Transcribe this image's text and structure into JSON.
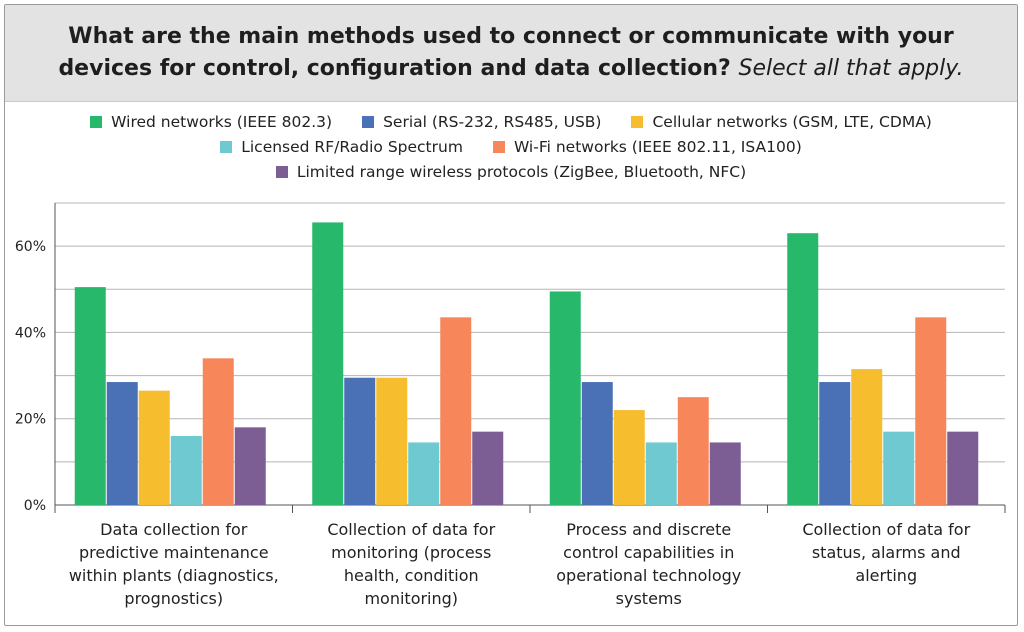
{
  "title": "What are the main methods used to connect or communicate with your devices for control, configuration and data collection?",
  "subtitle": "Select all that apply.",
  "colors": {
    "wired": "#27b86b",
    "serial": "#4a70b5",
    "cellular": "#f6bd2e",
    "rf": "#6ec9d1",
    "wifi": "#f7875a",
    "limited": "#7d5e94"
  },
  "chart_data": {
    "type": "bar",
    "categories": [
      "Data collection for predictive maintenance within plants (diagnostics, prognostics)",
      "Collection of data for monitoring (process health, condition monitoring)",
      "Process and discrete control capabilities in operational technology systems",
      "Collection of data for status, alarms and alerting"
    ],
    "category_lines": [
      [
        "Data collection for",
        "predictive maintenance",
        "within plants (diagnostics,",
        "prognostics)"
      ],
      [
        "Collection of data for",
        "monitoring (process",
        "health, condition",
        "monitoring)"
      ],
      [
        "Process and discrete",
        "control capabilities in",
        "operational technology",
        "systems"
      ],
      [
        "Collection of data for",
        "status, alarms and",
        "alerting"
      ]
    ],
    "series": [
      {
        "name": "Wired networks (IEEE 802.3)",
        "key": "wired",
        "values": [
          50.5,
          65.5,
          49.5,
          63
        ]
      },
      {
        "name": "Serial (RS-232, RS485, USB)",
        "key": "serial",
        "values": [
          28.5,
          29.5,
          28.5,
          28.5
        ]
      },
      {
        "name": "Cellular networks (GSM, LTE, CDMA)",
        "key": "cellular",
        "values": [
          26.5,
          29.5,
          22,
          31.5
        ]
      },
      {
        "name": "Licensed RF/Radio Spectrum",
        "key": "rf",
        "values": [
          16,
          14.5,
          14.5,
          17
        ]
      },
      {
        "name": "Wi-Fi networks (IEEE 802.11, ISA100)",
        "key": "wifi",
        "values": [
          34,
          43.5,
          25,
          43.5
        ]
      },
      {
        "name": "Limited range wireless protocols (ZigBee, Bluetooth, NFC)",
        "key": "limited",
        "values": [
          18,
          17,
          14.5,
          17
        ]
      }
    ],
    "yticks": [
      "0%",
      "20%",
      "40%",
      "60%"
    ],
    "ytick_values": [
      0,
      20,
      40,
      60
    ],
    "ylim": [
      0,
      70
    ],
    "grid": true,
    "legend_position": "top"
  }
}
